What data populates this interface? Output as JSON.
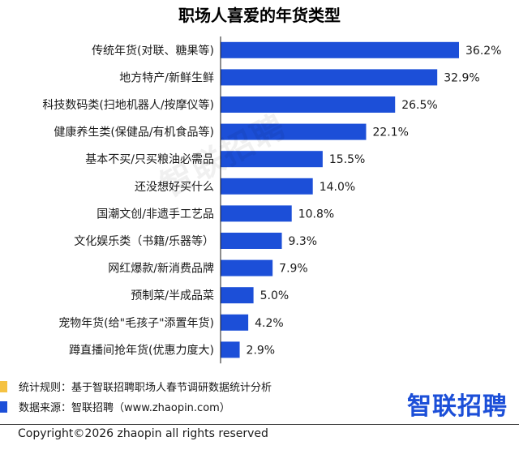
{
  "chart_data": {
    "type": "bar",
    "orientation": "horizontal",
    "title": "职场人喜爱的年货类型",
    "categories": [
      "传统年货(对联、糖果等)",
      "地方特产/新鲜生鲜",
      "科技数码类(扫地机器人/按摩仪等)",
      "健康养生类(保健品/有机食品等)",
      "基本不买/只买粮油必需品",
      "还没想好买什么",
      "国潮文创/非遗手工艺品",
      "文化娱乐类（书籍/乐器等）",
      "网红爆款/新消费品牌",
      "预制菜/半成品菜",
      "宠物年货(给\"毛孩子\"添置年货)",
      "蹲直播间抢年货(优惠力度大)"
    ],
    "values": [
      36.2,
      32.9,
      26.5,
      22.1,
      15.5,
      14.0,
      10.8,
      9.3,
      7.9,
      5.0,
      4.2,
      2.9
    ],
    "value_labels": [
      "36.2%",
      "32.9%",
      "26.5%",
      "22.1%",
      "15.5%",
      "14.0%",
      "10.8%",
      "9.3%",
      "7.9%",
      "5.0%",
      "4.2%",
      "2.9%"
    ],
    "bar_color": "#1c4fd8"
  },
  "watermark": "智联招聘",
  "footer": {
    "rule_label": "统计规则：基于智联招聘职场人春节调研数据统计分析",
    "rule_color": "#f5c242",
    "source_label": "数据来源：智联招聘（www.zhaopin.com）",
    "source_color": "#1c4fd8",
    "brand": "智联招聘",
    "copyright": "Copyright©2026 zhaopin all rights reserved"
  }
}
